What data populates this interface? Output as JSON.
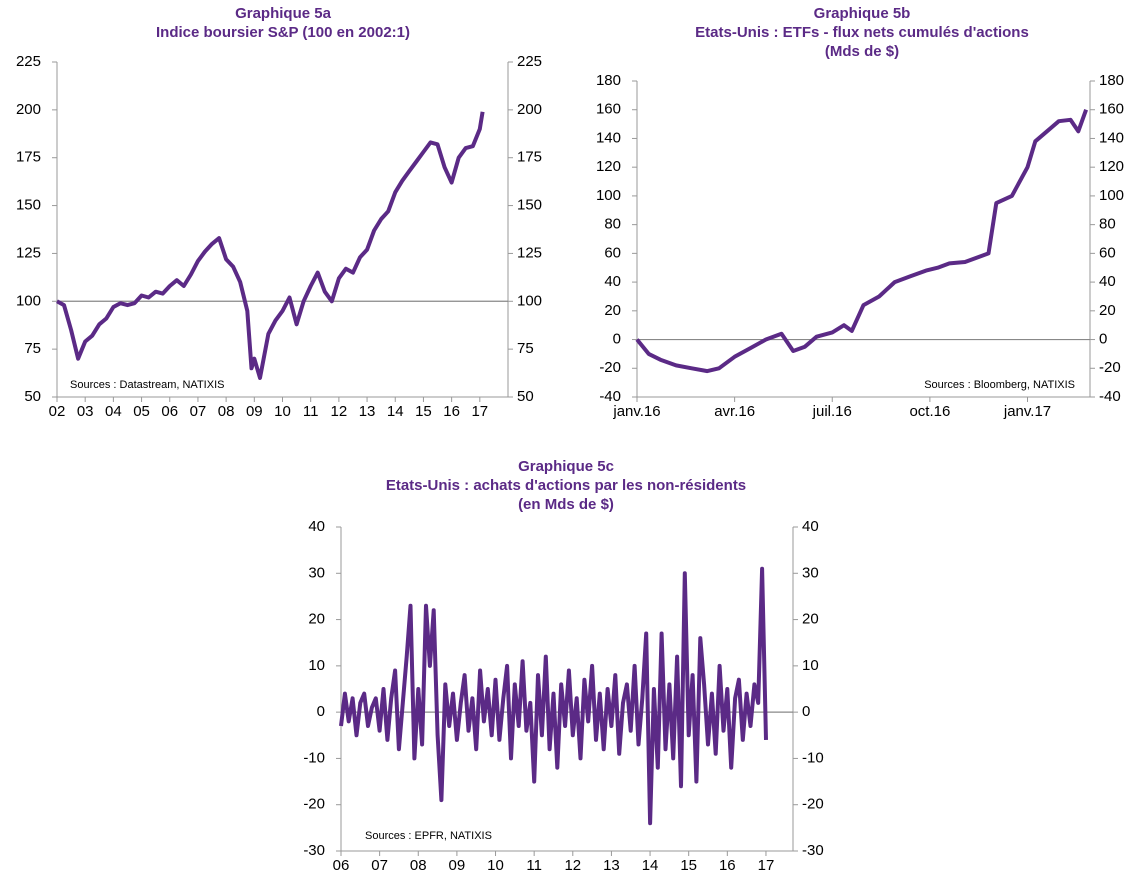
{
  "chart_data": [
    {
      "type": "line",
      "title": "Graphique 5a",
      "subtitle": [
        "Indice boursier S&P (100 en 2002:1)"
      ],
      "annotation": "Sources : Datastream, NATIXIS",
      "color": "#5b2a86",
      "reference_line": 100,
      "xlim": [
        2002,
        2018
      ],
      "ylim": [
        50,
        225
      ],
      "xticks": [
        {
          "value": 2002,
          "label": "02"
        },
        {
          "value": 2003,
          "label": "03"
        },
        {
          "value": 2004,
          "label": "04"
        },
        {
          "value": 2005,
          "label": "05"
        },
        {
          "value": 2006,
          "label": "06"
        },
        {
          "value": 2007,
          "label": "07"
        },
        {
          "value": 2008,
          "label": "08"
        },
        {
          "value": 2009,
          "label": "09"
        },
        {
          "value": 2010,
          "label": "10"
        },
        {
          "value": 2011,
          "label": "11"
        },
        {
          "value": 2012,
          "label": "12"
        },
        {
          "value": 2013,
          "label": "13"
        },
        {
          "value": 2014,
          "label": "14"
        },
        {
          "value": 2015,
          "label": "15"
        },
        {
          "value": 2016,
          "label": "16"
        },
        {
          "value": 2017,
          "label": "17"
        }
      ],
      "yticks": [
        50,
        75,
        100,
        125,
        150,
        175,
        200,
        225
      ],
      "x": [
        2002.0,
        2002.25,
        2002.5,
        2002.75,
        2003.0,
        2003.25,
        2003.5,
        2003.75,
        2004.0,
        2004.25,
        2004.5,
        2004.75,
        2005.0,
        2005.25,
        2005.5,
        2005.75,
        2006.0,
        2006.25,
        2006.5,
        2006.75,
        2007.0,
        2007.25,
        2007.5,
        2007.75,
        2008.0,
        2008.25,
        2008.5,
        2008.75,
        2008.9,
        2009.0,
        2009.2,
        2009.5,
        2009.75,
        2010.0,
        2010.25,
        2010.5,
        2010.75,
        2011.0,
        2011.25,
        2011.5,
        2011.75,
        2012.0,
        2012.25,
        2012.5,
        2012.75,
        2013.0,
        2013.25,
        2013.5,
        2013.75,
        2014.0,
        2014.25,
        2014.5,
        2014.75,
        2015.0,
        2015.25,
        2015.5,
        2015.75,
        2016.0,
        2016.25,
        2016.5,
        2016.75,
        2017.0,
        2017.1
      ],
      "values": [
        100,
        98,
        85,
        70,
        79,
        82,
        88,
        91,
        97,
        99,
        98,
        99,
        103,
        102,
        105,
        104,
        108,
        111,
        108,
        114,
        121,
        126,
        130,
        133,
        122,
        118,
        110,
        95,
        65,
        70,
        60,
        83,
        90,
        95,
        102,
        88,
        100,
        108,
        115,
        105,
        100,
        112,
        117,
        115,
        123,
        127,
        137,
        143,
        147,
        157,
        163,
        168,
        173,
        178,
        183,
        182,
        170,
        162,
        175,
        180,
        181,
        190,
        199
      ]
    },
    {
      "type": "line",
      "title": "Graphique 5b",
      "subtitle": [
        "Etats-Unis : ETFs - flux nets cumulés d'actions",
        "(Mds de $)"
      ],
      "annotation": "Sources : Bloomberg, NATIXIS",
      "color": "#5b2a86",
      "reference_line": 0,
      "xlim": [
        2016,
        2017.16
      ],
      "ylim": [
        -40,
        180
      ],
      "xticks": [
        {
          "value": 2016,
          "label": "janv.16"
        },
        {
          "value": 2016.25,
          "label": "avr.16"
        },
        {
          "value": 2016.5,
          "label": "juil.16"
        },
        {
          "value": 2016.75,
          "label": "oct.16"
        },
        {
          "value": 2017,
          "label": "janv.17"
        }
      ],
      "yticks": [
        -40,
        -20,
        0,
        20,
        40,
        60,
        80,
        100,
        120,
        140,
        160,
        180
      ],
      "x": [
        2016.0,
        2016.03,
        2016.06,
        2016.1,
        2016.14,
        2016.18,
        2016.21,
        2016.25,
        2016.29,
        2016.33,
        2016.37,
        2016.4,
        2016.43,
        2016.46,
        2016.5,
        2016.53,
        2016.55,
        2016.58,
        2016.62,
        2016.66,
        2016.7,
        2016.74,
        2016.77,
        2016.8,
        2016.84,
        2016.88,
        2016.9,
        2016.92,
        2016.96,
        2017.0,
        2017.02,
        2017.05,
        2017.08,
        2017.11,
        2017.13,
        2017.15
      ],
      "values": [
        0,
        -10,
        -14,
        -18,
        -20,
        -22,
        -20,
        -12,
        -6,
        0,
        4,
        -8,
        -5,
        2,
        5,
        10,
        6,
        24,
        30,
        40,
        44,
        48,
        50,
        53,
        54,
        58,
        60,
        95,
        100,
        120,
        138,
        145,
        152,
        153,
        145,
        160
      ]
    },
    {
      "type": "line",
      "title": "Graphique 5c",
      "subtitle": [
        "Etats-Unis : achats d'actions par les non-résidents",
        "(en Mds de $)"
      ],
      "annotation": "Sources : EPFR, NATIXIS",
      "color": "#5b2a86",
      "reference_line": 0,
      "xlim": [
        2006,
        2017.7
      ],
      "ylim": [
        -30,
        40
      ],
      "xticks": [
        {
          "value": 2006,
          "label": "06"
        },
        {
          "value": 2007,
          "label": "07"
        },
        {
          "value": 2008,
          "label": "08"
        },
        {
          "value": 2009,
          "label": "09"
        },
        {
          "value": 2010,
          "label": "10"
        },
        {
          "value": 2011,
          "label": "11"
        },
        {
          "value": 2012,
          "label": "12"
        },
        {
          "value": 2013,
          "label": "13"
        },
        {
          "value": 2014,
          "label": "14"
        },
        {
          "value": 2015,
          "label": "15"
        },
        {
          "value": 2016,
          "label": "16"
        },
        {
          "value": 2017,
          "label": "17"
        }
      ],
      "yticks": [
        -30,
        -20,
        -10,
        0,
        10,
        20,
        30,
        40
      ],
      "x": [
        2006.0,
        2006.1,
        2006.2,
        2006.3,
        2006.4,
        2006.5,
        2006.6,
        2006.7,
        2006.8,
        2006.9,
        2007.0,
        2007.1,
        2007.2,
        2007.3,
        2007.4,
        2007.5,
        2007.6,
        2007.7,
        2007.8,
        2007.9,
        2008.0,
        2008.1,
        2008.2,
        2008.3,
        2008.4,
        2008.5,
        2008.6,
        2008.7,
        2008.8,
        2008.9,
        2009.0,
        2009.1,
        2009.2,
        2009.3,
        2009.4,
        2009.5,
        2009.6,
        2009.7,
        2009.8,
        2009.9,
        2010.0,
        2010.1,
        2010.2,
        2010.3,
        2010.4,
        2010.5,
        2010.6,
        2010.7,
        2010.8,
        2010.9,
        2011.0,
        2011.1,
        2011.2,
        2011.3,
        2011.4,
        2011.5,
        2011.6,
        2011.7,
        2011.8,
        2011.9,
        2012.0,
        2012.1,
        2012.2,
        2012.3,
        2012.4,
        2012.5,
        2012.6,
        2012.7,
        2012.8,
        2012.9,
        2013.0,
        2013.1,
        2013.2,
        2013.3,
        2013.4,
        2013.5,
        2013.6,
        2013.7,
        2013.8,
        2013.9,
        2014.0,
        2014.1,
        2014.2,
        2014.3,
        2014.4,
        2014.5,
        2014.6,
        2014.7,
        2014.8,
        2014.9,
        2015.0,
        2015.1,
        2015.2,
        2015.3,
        2015.4,
        2015.5,
        2015.6,
        2015.7,
        2015.8,
        2015.9,
        2016.0,
        2016.1,
        2016.2,
        2016.3,
        2016.4,
        2016.5,
        2016.6,
        2016.7,
        2016.8,
        2016.9,
        2017.0
      ],
      "values": [
        -3,
        4,
        -2,
        3,
        -5,
        2,
        4,
        -3,
        1,
        3,
        -4,
        5,
        -6,
        3,
        9,
        -8,
        2,
        12,
        23,
        -10,
        5,
        -7,
        23,
        10,
        22,
        -5,
        -19,
        6,
        -3,
        4,
        -6,
        2,
        8,
        -4,
        3,
        -8,
        9,
        -2,
        5,
        -5,
        7,
        -6,
        3,
        10,
        -10,
        6,
        -3,
        11,
        -4,
        2,
        -15,
        8,
        -5,
        12,
        -8,
        4,
        -12,
        6,
        -3,
        9,
        -5,
        3,
        -10,
        7,
        -2,
        10,
        -6,
        4,
        -8,
        5,
        -3,
        8,
        -9,
        2,
        6,
        -4,
        10,
        -7,
        3,
        17,
        -24,
        5,
        -12,
        17,
        -8,
        6,
        -10,
        12,
        -16,
        30,
        -5,
        8,
        -15,
        16,
        6,
        -7,
        4,
        -9,
        10,
        -4,
        5,
        -12,
        3,
        7,
        -6,
        4,
        -3,
        6,
        2,
        31,
        -6
      ]
    }
  ]
}
